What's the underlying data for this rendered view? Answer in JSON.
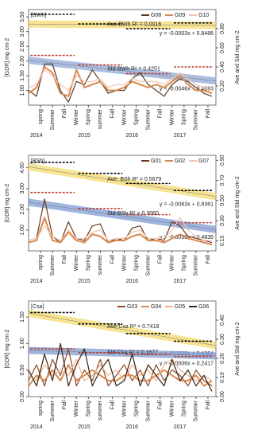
{
  "chart_data": [
    {
      "type": "line",
      "title": "[BWh]",
      "y_label": "[GDR] mg cm-2",
      "y2_label": "Ave and Std mg cm-2",
      "x": [
        0,
        2,
        4,
        6,
        8,
        10,
        12,
        14,
        16,
        18,
        20,
        22,
        24,
        26,
        28,
        30,
        32,
        34,
        36,
        38,
        40,
        42,
        44,
        46
      ],
      "xlim": [
        0,
        47
      ],
      "xticks": [
        {
          "value": 3,
          "label": "spring"
        },
        {
          "value": 6,
          "label": "Summer"
        },
        {
          "value": 9,
          "label": "Fall"
        },
        {
          "value": 12,
          "label": "Winter"
        },
        {
          "value": 15,
          "label": "Spring"
        },
        {
          "value": 18,
          "label": "summer"
        },
        {
          "value": 21,
          "label": "Fall"
        },
        {
          "value": 24,
          "label": "Winter"
        },
        {
          "value": 27,
          "label": "Spring"
        },
        {
          "value": 30,
          "label": "Summer"
        },
        {
          "value": 33,
          "label": "Fall"
        },
        {
          "value": 36,
          "label": "Winter"
        },
        {
          "value": 39,
          "label": "Spring"
        },
        {
          "value": 42,
          "label": "Summer"
        },
        {
          "value": 45,
          "label": "Fall"
        }
      ],
      "year_labels": [
        {
          "value": 0,
          "label": "2014"
        },
        {
          "value": 12,
          "label": "2015"
        },
        {
          "value": 24,
          "label": "2016"
        },
        {
          "value": 36,
          "label": "2017"
        }
      ],
      "ylim": [
        0.5,
        3.75
      ],
      "yticks": [
        {
          "value": 1,
          "label": "1.00"
        },
        {
          "value": 1.5,
          "label": "1.50"
        },
        {
          "value": 2,
          "label": "2.00"
        },
        {
          "value": 2.5,
          "label": "2.50"
        },
        {
          "value": 3,
          "label": "3.00"
        },
        {
          "value": 3.5,
          "label": "3.50"
        }
      ],
      "y2lim": [
        0,
        1
      ],
      "y2ticks": [
        {
          "value": 0.2,
          "label": "0.20"
        },
        {
          "value": 0.4,
          "label": "0.40"
        },
        {
          "value": 0.6,
          "label": "0.60"
        },
        {
          "value": 0.8,
          "label": "0.80"
        }
      ],
      "series": [
        {
          "name": "G08",
          "color": "#5a3a22",
          "values": [
            1.0,
            0.8,
            1.9,
            1.9,
            1.0,
            0.6,
            1.3,
            1.2,
            1.7,
            1.3,
            0.9,
            1.0,
            1.0,
            1.4,
            1.6,
            1.2,
            1.0,
            0.8,
            1.2,
            1.4,
            1.3,
            1.1,
            0.9,
            0.8
          ]
        },
        {
          "name": "G09",
          "color": "#d9884e",
          "values": [
            0.9,
            1.1,
            1.8,
            1.6,
            0.9,
            0.8,
            1.7,
            1.1,
            1.2,
            1.3,
            1.0,
            1.0,
            1.1,
            1.3,
            1.2,
            1.1,
            1.2,
            1.1,
            1.3,
            1.5,
            1.2,
            1.0,
            1.0,
            0.9
          ]
        },
        {
          "name": "G10",
          "color": "#f2c4b0",
          "values": [
            1.1,
            1.2,
            1.7,
            1.5,
            1.2,
            1.0,
            1.5,
            1.3,
            1.3,
            1.4,
            1.1,
            1.2,
            1.2,
            1.4,
            1.3,
            1.3,
            1.3,
            1.2,
            1.4,
            1.6,
            1.4,
            1.2,
            1.1,
            1.0
          ]
        }
      ],
      "trends": [
        {
          "label": "Ave-BWh R² = 0.0016",
          "equation": "y = -0.0003x + 0.8486",
          "color": "#f5dc6e",
          "axis": "y2",
          "values": [
            0.8486,
            0.834
          ]
        },
        {
          "label": "Std-BWh R² = 0.4251",
          "equation": "y = -0.0046x + 0.4693",
          "color": "#8fa8d8",
          "axis": "y2",
          "values": [
            0.4693,
            0.253
          ]
        }
      ],
      "yearly_ave": {
        "color": "#000000",
        "axis": "y2",
        "values": [
          0.95,
          0.85,
          0.8,
          0.86
        ]
      },
      "yearly_std": {
        "color": "#c0392b",
        "axis": "y2",
        "values": [
          0.52,
          0.42,
          0.33,
          0.4
        ]
      }
    },
    {
      "type": "line",
      "title": "[BSh]",
      "y_label": "[GDR] mg cm-2",
      "y2_label": "Ave and Std mg cm-2",
      "x": [
        0,
        2,
        4,
        6,
        8,
        10,
        12,
        14,
        16,
        18,
        20,
        22,
        24,
        26,
        28,
        30,
        32,
        34,
        36,
        38,
        40,
        42,
        44,
        46
      ],
      "xlim": [
        0,
        47
      ],
      "xticks": [
        {
          "value": 3,
          "label": "spring"
        },
        {
          "value": 6,
          "label": "Summer"
        },
        {
          "value": 9,
          "label": "Fall"
        },
        {
          "value": 12,
          "label": "Winter"
        },
        {
          "value": 15,
          "label": "Spring"
        },
        {
          "value": 18,
          "label": "summer"
        },
        {
          "value": 21,
          "label": "Fall"
        },
        {
          "value": 24,
          "label": "Winter"
        },
        {
          "value": 27,
          "label": "Spring"
        },
        {
          "value": 30,
          "label": "Summer"
        },
        {
          "value": 33,
          "label": "Fall"
        },
        {
          "value": 36,
          "label": "Winter"
        },
        {
          "value": 39,
          "label": "Spring"
        },
        {
          "value": 42,
          "label": "Summer"
        },
        {
          "value": 45,
          "label": "Fall"
        }
      ],
      "year_labels": [
        {
          "value": 0,
          "label": "2014"
        },
        {
          "value": 12,
          "label": "2015"
        },
        {
          "value": 24,
          "label": "2016"
        },
        {
          "value": 36,
          "label": "2017"
        }
      ],
      "ylim": [
        0,
        4.6
      ],
      "yticks": [
        {
          "value": 1,
          "label": "1.00"
        },
        {
          "value": 2,
          "label": "2.00"
        },
        {
          "value": 3,
          "label": "3.00"
        },
        {
          "value": 4,
          "label": "4.00"
        }
      ],
      "y2lim": [
        0,
        0.95
      ],
      "y2ticks": [
        {
          "value": 0.1,
          "label": "0.10"
        },
        {
          "value": 0.3,
          "label": "0.30"
        },
        {
          "value": 0.5,
          "label": "0.50"
        },
        {
          "value": 0.7,
          "label": "0.70"
        },
        {
          "value": 0.9,
          "label": "0.90"
        }
      ],
      "series": [
        {
          "name": "G01",
          "color": "#6b3a1f",
          "values": [
            0.5,
            0.6,
            2.5,
            0.7,
            0.4,
            1.4,
            0.6,
            0.5,
            1.2,
            1.3,
            0.4,
            0.6,
            0.5,
            1.1,
            1.2,
            0.5,
            0.6,
            0.5,
            1.4,
            1.2,
            0.7,
            0.6,
            0.5,
            0.4
          ]
        },
        {
          "name": "G02",
          "color": "#d9884e",
          "values": [
            0.4,
            0.5,
            1.6,
            0.5,
            0.4,
            0.9,
            0.5,
            0.4,
            0.8,
            0.7,
            0.4,
            0.5,
            0.5,
            0.7,
            0.8,
            0.5,
            0.5,
            0.4,
            0.6,
            0.8,
            0.6,
            0.5,
            0.4,
            0.3
          ]
        },
        {
          "name": "G07",
          "color": "#f2c4b0",
          "values": [
            0.5,
            0.6,
            1.2,
            0.7,
            0.5,
            1.0,
            0.6,
            0.6,
            0.9,
            1.0,
            0.5,
            0.6,
            0.6,
            0.9,
            1.0,
            0.6,
            0.6,
            0.6,
            1.0,
            1.6,
            1.0,
            0.7,
            0.5,
            0.5
          ]
        }
      ],
      "trends": [
        {
          "label": "Ave- BSh R² = 0.5679",
          "equation": "y = -0.0063x + 0.8361",
          "color": "#f5dc6e",
          "axis": "y2",
          "values": [
            0.8361,
            0.54
          ]
        },
        {
          "label": "Std-BSh R² = 0.3060",
          "equation": "y = -0.0058x + 0.4835",
          "color": "#7f9bd3",
          "axis": "y2",
          "values": [
            0.4835,
            0.211
          ]
        }
      ],
      "yearly_ave": {
        "color": "#000000",
        "axis": "y2",
        "values": [
          0.88,
          0.77,
          0.67,
          0.6
        ]
      },
      "yearly_std": {
        "color": "#c0392b",
        "axis": "y2",
        "values": [
          0.58,
          0.42,
          0.36,
          0.28
        ]
      }
    },
    {
      "type": "line",
      "title": "[Csa]",
      "y_label": "[GDR] mg cm-2",
      "y2_label": "Ave and Std mg cm-2",
      "x": [
        0,
        2,
        4,
        6,
        8,
        10,
        12,
        14,
        16,
        18,
        20,
        22,
        24,
        26,
        28,
        30,
        32,
        34,
        36,
        38,
        40,
        42,
        44,
        46
      ],
      "xlim": [
        0,
        47
      ],
      "xticks": [
        {
          "value": 3,
          "label": "spring"
        },
        {
          "value": 6,
          "label": "Summer"
        },
        {
          "value": 9,
          "label": "Fall"
        },
        {
          "value": 12,
          "label": "Winter"
        },
        {
          "value": 15,
          "label": "Spring"
        },
        {
          "value": 18,
          "label": "summer"
        },
        {
          "value": 21,
          "label": "Fall"
        },
        {
          "value": 24,
          "label": "Winter"
        },
        {
          "value": 27,
          "label": "Spring"
        },
        {
          "value": 30,
          "label": "Summer"
        },
        {
          "value": 33,
          "label": "Fall"
        },
        {
          "value": 36,
          "label": "Winter"
        },
        {
          "value": 39,
          "label": "Spring"
        },
        {
          "value": 42,
          "label": "Summer"
        },
        {
          "value": 45,
          "label": "Fall"
        }
      ],
      "year_labels": [
        {
          "value": 0,
          "label": "2014"
        },
        {
          "value": 12,
          "label": "2015"
        },
        {
          "value": 24,
          "label": "2016"
        },
        {
          "value": 36,
          "label": "2017"
        }
      ],
      "ylim": [
        0,
        1.8
      ],
      "yticks": [
        {
          "value": 0,
          "label": "0.00"
        },
        {
          "value": 0.5,
          "label": "0.50"
        },
        {
          "value": 1,
          "label": "1.00"
        },
        {
          "value": 1.5,
          "label": "1.50"
        }
      ],
      "y2lim": [
        0,
        0.5
      ],
      "y2ticks": [
        {
          "value": 0,
          "label": "0.00"
        },
        {
          "value": 0.1,
          "label": "0.10"
        },
        {
          "value": 0.2,
          "label": "0.20"
        },
        {
          "value": 0.3,
          "label": "0.30"
        },
        {
          "value": 0.4,
          "label": "0.40"
        }
      ],
      "series": [
        {
          "name": "G03",
          "color": "#8a4a25",
          "values": [
            0.3,
            0.6,
            0.2,
            0.7,
            0.4,
            0.9,
            0.2,
            0.5,
            0.3,
            0.7,
            0.2,
            0.4,
            0.6,
            0.3,
            0.5,
            0.2,
            0.6,
            0.3,
            0.5,
            0.4,
            0.2,
            0.5,
            0.3,
            0.2
          ]
        },
        {
          "name": "G04",
          "color": "#d9884e",
          "values": [
            0.2,
            0.4,
            0.3,
            0.5,
            0.3,
            0.6,
            0.3,
            0.4,
            0.5,
            0.4,
            0.3,
            0.3,
            0.4,
            0.4,
            0.3,
            0.3,
            0.4,
            0.5,
            0.4,
            0.3,
            0.3,
            0.4,
            0.2,
            0.3
          ]
        },
        {
          "name": "G05",
          "color": "#f0b48c",
          "values": [
            0.4,
            0.3,
            0.6,
            0.4,
            0.5,
            0.4,
            0.7,
            0.3,
            0.4,
            0.6,
            0.4,
            0.5,
            0.3,
            0.6,
            0.4,
            0.5,
            0.3,
            0.6,
            0.7,
            0.5,
            0.4,
            0.3,
            0.4,
            0.3
          ]
        },
        {
          "name": "G06",
          "color": "#3b2314",
          "values": [
            0.5,
            0.2,
            0.8,
            0.3,
            1.0,
            0.2,
            0.6,
            0.9,
            0.2,
            0.5,
            0.7,
            0.2,
            0.3,
            0.8,
            0.2,
            0.6,
            0.4,
            0.2,
            0.7,
            0.3,
            0.5,
            0.2,
            0.4,
            0.1
          ]
        }
      ],
      "trends": [
        {
          "label": "Ave-Csa R² = 0.7418",
          "equation": "y = -0.0036x + 0.4364",
          "color": "#f5dc6e",
          "axis": "y2",
          "values": [
            0.4364,
            0.267
          ]
        },
        {
          "label": "Std-Csa R² = 0.1677",
          "equation": "y = -0.0006x + 0.2417",
          "color": "#7f9bd3",
          "axis": "y2",
          "values": [
            0.2417,
            0.213
          ]
        }
      ],
      "yearly_ave": {
        "color": "#000000",
        "axis": "y2",
        "values": [
          0.44,
          0.38,
          0.33,
          0.29
        ]
      },
      "yearly_std": {
        "color": "#c0392b",
        "axis": "y2",
        "values": [
          0.25,
          0.23,
          0.22,
          0.21
        ]
      }
    }
  ]
}
